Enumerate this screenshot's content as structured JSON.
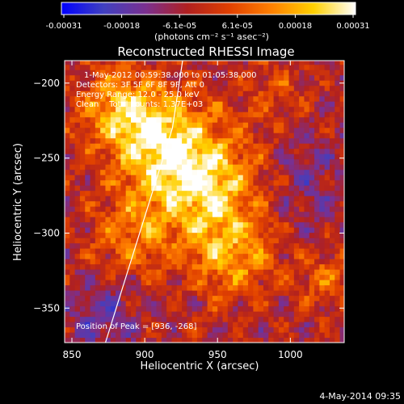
{
  "colorbar": {
    "tick_labels": [
      "-0.00031",
      "-0.00018",
      "-6.1e-05",
      "6.1e-05",
      "0.00018",
      "0.00031"
    ],
    "units_label": "(photons cm⁻² s⁻¹ asec⁻²)",
    "gradient": [
      "#0000ff",
      "#4040c0",
      "#7a3090",
      "#b02020",
      "#e04000",
      "#ff8000",
      "#ffd000",
      "#ffffff"
    ]
  },
  "chart_data": {
    "type": "heatmap",
    "title": "Reconstructed RHESSI Image",
    "xlabel": "Heliocentric X (arcsec)",
    "ylabel": "Heliocentric Y (arcsec)",
    "xlim": [
      845,
      1037
    ],
    "ylim": [
      -373,
      -185
    ],
    "x_ticks": [
      850,
      900,
      950,
      1000
    ],
    "y_ticks": [
      -200,
      -250,
      -300,
      -350
    ],
    "value_range": [
      -0.00031,
      0.00031
    ],
    "peak_position": [
      936,
      -268
    ],
    "limb_line": [
      [
        873,
        -373
      ],
      [
        919,
        -230
      ],
      [
        926,
        -185
      ]
    ],
    "annotations": [
      "1-May-2012 00:59:38.000 to 01:05:38.000",
      "Detectors: 3F 5F 6F 8F 9F, Att 0",
      "Energy Range: 12.0 - 25.0 keV",
      "Clean    Total counts: 1.37E+03",
      "Position of Peak = [936, -268]"
    ],
    "sources": [
      {
        "x": 938,
        "y": -265,
        "amp": 0.00031,
        "sigma": 28
      },
      {
        "x": 905,
        "y": -235,
        "amp": 0.00024,
        "sigma": 22
      },
      {
        "x": 880,
        "y": -215,
        "amp": 0.00018,
        "sigma": 18
      },
      {
        "x": 960,
        "y": -315,
        "amp": 0.00018,
        "sigma": 20
      },
      {
        "x": 890,
        "y": -300,
        "amp": 0.00014,
        "sigma": 18
      },
      {
        "x": 1025,
        "y": -330,
        "amp": 0.00012,
        "sigma": 14
      },
      {
        "x": 990,
        "y": -205,
        "amp": 8e-05,
        "sigma": 14
      },
      {
        "x": 1010,
        "y": -265,
        "amp": -8e-05,
        "sigma": 22
      },
      {
        "x": 870,
        "y": -355,
        "amp": -0.00012,
        "sigma": 16
      }
    ]
  },
  "footer": {
    "timestamp": "4-May-2014 09:35"
  }
}
